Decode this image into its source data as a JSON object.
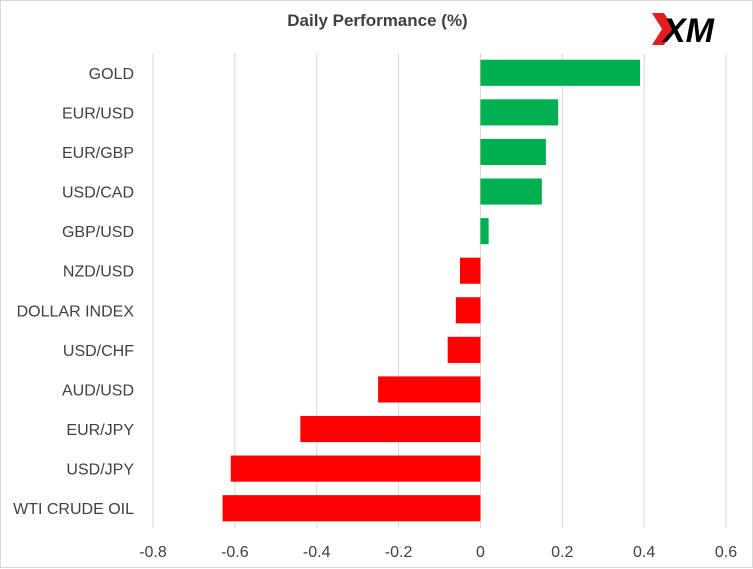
{
  "logo": {
    "text": "XM",
    "icon": "xm-logo",
    "accent_color": "#e31b23",
    "text_color": "#000000"
  },
  "chart_data": {
    "type": "bar",
    "orientation": "horizontal",
    "title": "Daily Performance  (%)",
    "categories": [
      "GOLD",
      "EUR/USD",
      "EUR/GBP",
      "USD/CAD",
      "GBP/USD",
      "NZD/USD",
      "DOLLAR INDEX",
      "USD/CHF",
      "AUD/USD",
      "EUR/JPY",
      "USD/JPY",
      "WTI CRUDE OIL"
    ],
    "values": [
      0.39,
      0.19,
      0.16,
      0.15,
      0.02,
      -0.05,
      -0.06,
      -0.08,
      -0.25,
      -0.44,
      -0.61,
      -0.63
    ],
    "xlim": [
      -0.8,
      0.6
    ],
    "xticks": [
      -0.8,
      -0.6,
      -0.4,
      -0.2,
      0,
      0.2,
      0.4,
      0.6
    ],
    "xtick_labels": [
      "-0.8",
      "-0.6",
      "-0.4",
      "-0.2",
      "0",
      "0.2",
      "0.4",
      "0.6"
    ],
    "grid": "vertical",
    "legend": "none",
    "colors": {
      "positive": "#00b050",
      "negative": "#ff0000",
      "grid": "#d9d9d9",
      "text": "#404040"
    }
  }
}
